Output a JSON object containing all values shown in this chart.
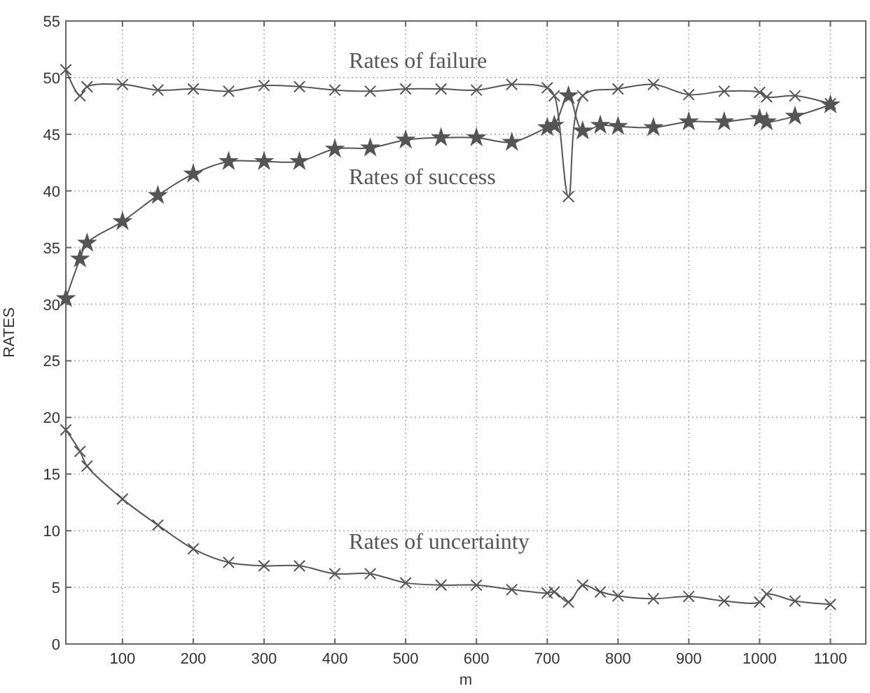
{
  "chart_data": {
    "type": "line",
    "xlabel": "m",
    "ylabel": "RATES",
    "xlim": [
      20,
      1150
    ],
    "xticks": [
      100,
      200,
      300,
      400,
      500,
      600,
      700,
      800,
      900,
      1000,
      1100
    ],
    "ylim": [
      0,
      55
    ],
    "yticks": [
      0,
      5,
      10,
      15,
      20,
      25,
      30,
      35,
      40,
      45,
      50,
      55
    ],
    "grid": true,
    "line_style": "solid",
    "legend": false,
    "series": [
      {
        "name": "Rates of failure",
        "color": "#555555",
        "marker": "cross",
        "x": [
          20,
          40,
          50,
          100,
          150,
          200,
          250,
          300,
          350,
          400,
          450,
          500,
          550,
          600,
          650,
          700,
          710,
          730,
          750,
          800,
          850,
          900,
          950,
          1000,
          1010,
          1050,
          1100
        ],
        "values": [
          50.7,
          48.4,
          49.2,
          49.4,
          48.9,
          49.0,
          48.8,
          49.3,
          49.2,
          48.9,
          48.8,
          49.0,
          49.0,
          48.9,
          49.4,
          49.1,
          48.4,
          39.5,
          48.4,
          49.0,
          49.4,
          48.5,
          48.8,
          48.7,
          48.3,
          48.4,
          47.7
        ]
      },
      {
        "name": "Rates of success",
        "color": "#555555",
        "marker": "star",
        "x": [
          20,
          40,
          50,
          100,
          150,
          200,
          250,
          300,
          350,
          400,
          450,
          500,
          550,
          600,
          650,
          700,
          710,
          730,
          750,
          775,
          800,
          850,
          900,
          950,
          1000,
          1010,
          1050,
          1100
        ],
        "values": [
          30.5,
          34.0,
          35.4,
          37.3,
          39.6,
          41.5,
          42.6,
          42.6,
          42.6,
          43.7,
          43.8,
          44.5,
          44.7,
          44.7,
          44.3,
          45.6,
          45.8,
          48.4,
          45.3,
          45.8,
          45.7,
          45.6,
          46.1,
          46.1,
          46.4,
          46.1,
          46.6,
          47.6
        ]
      },
      {
        "name": "Rates of uncertainty",
        "color": "#555555",
        "marker": "cross",
        "x": [
          20,
          40,
          50,
          100,
          150,
          200,
          250,
          300,
          350,
          400,
          450,
          500,
          550,
          600,
          650,
          700,
          710,
          730,
          750,
          775,
          800,
          850,
          900,
          950,
          1000,
          1010,
          1050,
          1100
        ],
        "values": [
          18.9,
          17.0,
          15.7,
          12.8,
          10.5,
          8.4,
          7.2,
          6.9,
          6.9,
          6.2,
          6.2,
          5.4,
          5.2,
          5.2,
          4.8,
          4.5,
          4.6,
          3.7,
          5.2,
          4.6,
          4.25,
          4.0,
          4.2,
          3.8,
          3.7,
          4.4,
          3.8,
          3.5
        ]
      }
    ]
  }
}
